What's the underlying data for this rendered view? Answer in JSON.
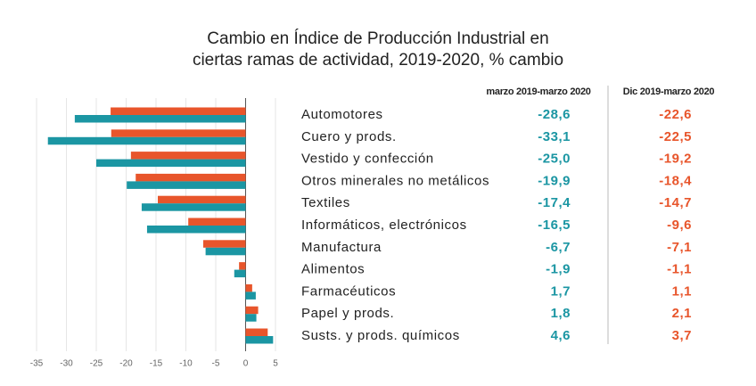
{
  "chart_data": {
    "type": "bar",
    "orientation": "horizontal",
    "title": [
      "Cambio en Índice de Producción Industrial en",
      "ciertas ramas de actividad, 2019-2020, % cambio"
    ],
    "categories": [
      "Automotores",
      "Cuero y prods.",
      "Vestido y confección",
      "Otros minerales no metálicos",
      "Textiles",
      "Informáticos, electrónicos",
      "Manufactura",
      "Alimentos",
      "Farmacéuticos",
      "Papel y prods.",
      "Susts. y prods. químicos"
    ],
    "series": [
      {
        "name": "Dic 2019-marzo 2020",
        "color": "#e8552b",
        "values": [
          -22.6,
          -22.5,
          -19.2,
          -18.4,
          -14.7,
          -9.6,
          -7.1,
          -1.1,
          1.1,
          2.1,
          3.7
        ],
        "value_labels": [
          "-22,6",
          "-22,5",
          "-19,2",
          "-18,4",
          "-14,7",
          "-9,6",
          "-7,1",
          "-1,1",
          "1,1",
          "2,1",
          "3,7"
        ]
      },
      {
        "name": "marzo 2019-marzo 2020",
        "color": "#1b96a3",
        "values": [
          -28.6,
          -33.1,
          -25.0,
          -19.9,
          -17.4,
          -16.5,
          -6.7,
          -1.9,
          1.7,
          1.8,
          4.6
        ],
        "value_labels": [
          "-28,6",
          "-33,1",
          "-25,0",
          "-19,9",
          "-17,4",
          "-16,5",
          "-6,7",
          "-1,9",
          "1,7",
          "1,8",
          "4,6"
        ]
      }
    ],
    "xlim": [
      -35,
      5
    ],
    "xticks": [
      -35,
      -30,
      -25,
      -20,
      -15,
      -10,
      -5,
      0,
      5
    ],
    "grid": true
  }
}
